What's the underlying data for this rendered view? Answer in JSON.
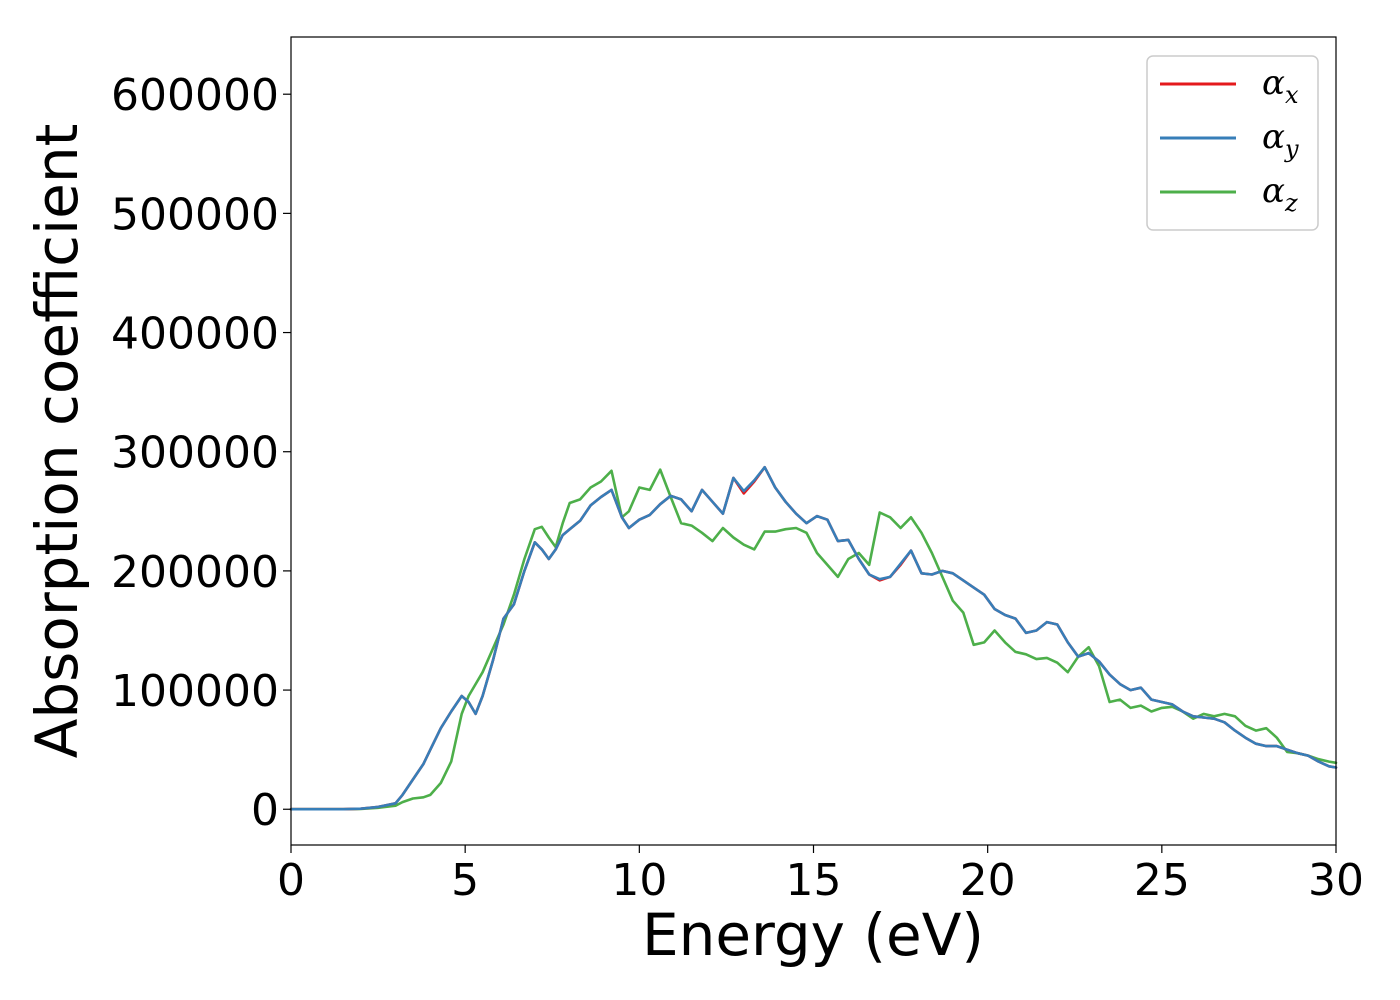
{
  "chart_data": {
    "type": "line",
    "title": "",
    "xlabel": "Energy (eV)",
    "ylabel": "Absorption coefficient",
    "xlim": [
      0,
      30
    ],
    "ylim": [
      -30000,
      648000
    ],
    "xticks": [
      0,
      5,
      10,
      15,
      20,
      25,
      30
    ],
    "xtick_labels": [
      "0",
      "5",
      "10",
      "15",
      "20",
      "25",
      "30"
    ],
    "yticks": [
      0,
      100000,
      200000,
      300000,
      400000,
      500000,
      600000
    ],
    "ytick_labels": [
      "0",
      "100000",
      "200000",
      "300000",
      "400000",
      "500000",
      "600000"
    ],
    "grid": false,
    "legend_position": "top-right",
    "x": [
      0,
      0.5,
      1,
      1.5,
      2,
      2.5,
      3,
      3.2,
      3.5,
      3.8,
      4,
      4.3,
      4.6,
      4.9,
      5.1,
      5.3,
      5.5,
      5.8,
      6.1,
      6.4,
      6.7,
      7.0,
      7.2,
      7.4,
      7.6,
      7.8,
      8.0,
      8.3,
      8.6,
      8.9,
      9.2,
      9.5,
      9.7,
      10.0,
      10.3,
      10.6,
      10.9,
      11.2,
      11.5,
      11.8,
      12.1,
      12.4,
      12.7,
      13.0,
      13.3,
      13.6,
      13.9,
      14.2,
      14.5,
      14.8,
      15.1,
      15.4,
      15.7,
      16.0,
      16.3,
      16.6,
      16.9,
      17.2,
      17.5,
      17.8,
      18.1,
      18.4,
      18.7,
      19.0,
      19.3,
      19.6,
      19.9,
      20.2,
      20.5,
      20.8,
      21.1,
      21.4,
      21.7,
      22.0,
      22.3,
      22.6,
      22.9,
      23.2,
      23.5,
      23.8,
      24.1,
      24.4,
      24.7,
      25.0,
      25.3,
      25.6,
      25.9,
      26.2,
      26.5,
      26.8,
      27.1,
      27.4,
      27.7,
      28.0,
      28.3,
      28.6,
      28.9,
      29.2,
      29.5,
      29.8,
      30.0
    ],
    "series": [
      {
        "name": "αx",
        "color": "#e41a1c",
        "values": [
          0,
          0,
          0,
          0,
          500,
          2000,
          5000,
          12000,
          25000,
          38000,
          50000,
          68000,
          82000,
          95000,
          90000,
          80000,
          95000,
          125000,
          160000,
          172000,
          200000,
          224000,
          218000,
          210000,
          218000,
          230000,
          235000,
          242000,
          255000,
          262000,
          268000,
          245000,
          236000,
          243000,
          247000,
          256000,
          263000,
          260000,
          250000,
          268000,
          258000,
          248000,
          278000,
          265000,
          275000,
          287000,
          270000,
          258000,
          248000,
          240000,
          246000,
          243000,
          225000,
          226000,
          210000,
          197000,
          192000,
          195000,
          205000,
          217000,
          198000,
          197000,
          200000,
          198000,
          192000,
          186000,
          180000,
          168000,
          163000,
          160000,
          148000,
          150000,
          157000,
          155000,
          140000,
          128000,
          131000,
          124000,
          113000,
          105000,
          100000,
          102000,
          92000,
          90000,
          88000,
          82000,
          78000,
          77000,
          76000,
          73000,
          66000,
          60000,
          55000,
          53000,
          53000,
          50000,
          47000,
          45000,
          40000,
          36000,
          35000
        ]
      },
      {
        "name": "αy",
        "color": "#377eb8",
        "values": [
          0,
          0,
          0,
          0,
          500,
          2000,
          5000,
          12000,
          25000,
          38000,
          50000,
          68000,
          82000,
          95000,
          90000,
          80000,
          95000,
          125000,
          160000,
          172000,
          200000,
          224000,
          218000,
          210000,
          218000,
          230000,
          235000,
          242000,
          255000,
          262000,
          268000,
          245000,
          236000,
          243000,
          247000,
          256000,
          263000,
          260000,
          250000,
          268000,
          258000,
          248000,
          278000,
          267000,
          276000,
          287000,
          270000,
          258000,
          248000,
          240000,
          246000,
          243000,
          225000,
          226000,
          210000,
          197000,
          193000,
          195000,
          206000,
          217000,
          198000,
          197000,
          200000,
          198000,
          192000,
          186000,
          180000,
          168000,
          163000,
          160000,
          148000,
          150000,
          157000,
          155000,
          140000,
          128000,
          131000,
          124000,
          113000,
          105000,
          100000,
          102000,
          92000,
          90000,
          88000,
          82000,
          78000,
          77000,
          76000,
          73000,
          66000,
          60000,
          55000,
          53000,
          53000,
          50000,
          47000,
          45000,
          40000,
          36000,
          35000
        ]
      },
      {
        "name": "αz",
        "color": "#4daf4a",
        "values": [
          0,
          0,
          0,
          0,
          300,
          1200,
          3000,
          6000,
          9000,
          10000,
          12000,
          22000,
          40000,
          80000,
          95000,
          105000,
          115000,
          135000,
          155000,
          180000,
          210000,
          235000,
          237000,
          228000,
          220000,
          240000,
          257000,
          260000,
          270000,
          275000,
          284000,
          245000,
          250000,
          270000,
          268000,
          285000,
          262000,
          240000,
          238000,
          232000,
          225000,
          236000,
          228000,
          222000,
          218000,
          233000,
          233000,
          235000,
          236000,
          232000,
          215000,
          205000,
          195000,
          210000,
          215000,
          205000,
          249000,
          245000,
          236000,
          245000,
          232000,
          215000,
          195000,
          175000,
          165000,
          138000,
          140000,
          150000,
          140000,
          132000,
          130000,
          126000,
          127000,
          123000,
          115000,
          128000,
          136000,
          120000,
          90000,
          92000,
          85000,
          87000,
          82000,
          85000,
          86000,
          82000,
          76000,
          80000,
          78000,
          80000,
          78000,
          70000,
          66000,
          68000,
          60000,
          48000,
          47000,
          45000,
          42000,
          40000,
          39000
        ]
      }
    ],
    "legend": [
      {
        "base": "α",
        "sub": "x"
      },
      {
        "base": "α",
        "sub": "y"
      },
      {
        "base": "α",
        "sub": "z"
      }
    ]
  }
}
